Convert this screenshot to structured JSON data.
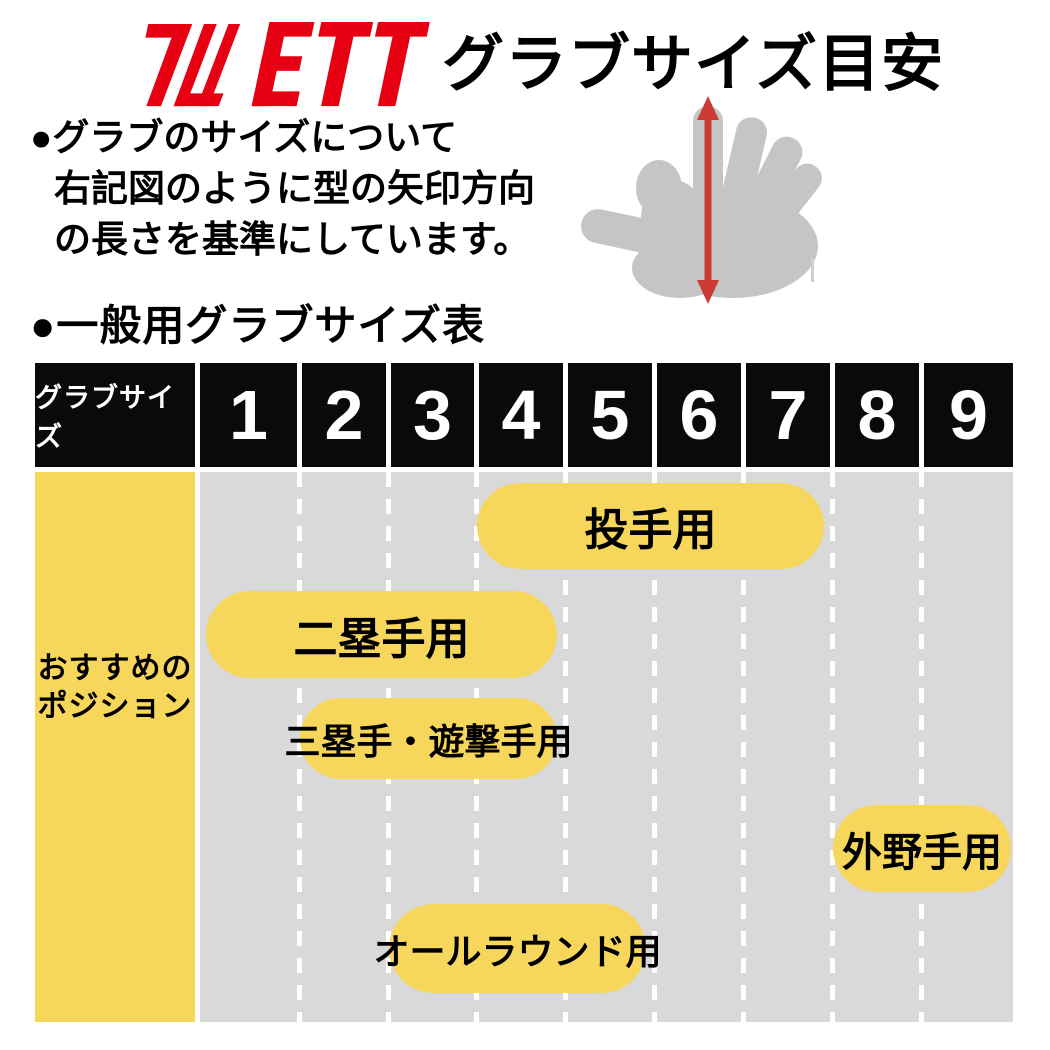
{
  "brand": {
    "name": "ZETT",
    "logo_color": "#E60012"
  },
  "header": {
    "title": "グラブサイズ目安"
  },
  "intro": {
    "line1": "●グラブのサイズについて",
    "line2": "右記図のように型の矢印方向",
    "line3": "の長さを基準にしています。"
  },
  "diagram": {
    "hand_color": "#C5C5C6",
    "arrow_color": "#CC3B33"
  },
  "section": {
    "heading": "●一般用グラブサイズ表"
  },
  "table": {
    "header_label": "グラブサイズ",
    "sizes": [
      "1",
      "2",
      "3",
      "4",
      "5",
      "6",
      "7",
      "8",
      "9"
    ],
    "row_label_line1": "おすすめの",
    "row_label_line2": "ポジション",
    "positions": [
      {
        "label": "投手用",
        "size_start": 4,
        "size_end": 7
      },
      {
        "label": "二塁手用",
        "size_start": 1,
        "size_end": 4
      },
      {
        "label": "三塁手・遊撃手用",
        "size_start": 2,
        "size_end": 4
      },
      {
        "label": "外野手用",
        "size_start": 8,
        "size_end": 9
      },
      {
        "label": "オールラウンド用",
        "size_start": 3,
        "size_end": 5
      }
    ],
    "colors": {
      "header_bg": "#0A0A0A",
      "header_text": "#FFFFFF",
      "body_bg": "#D9D9D9",
      "highlight": "#F7D65C"
    }
  },
  "chart_data": {
    "type": "table",
    "title": "一般用グラブサイズ表",
    "categories": [
      "1",
      "2",
      "3",
      "4",
      "5",
      "6",
      "7",
      "8",
      "9"
    ],
    "series": [
      {
        "name": "投手用",
        "range": [
          4,
          7
        ]
      },
      {
        "name": "二塁手用",
        "range": [
          1,
          4
        ]
      },
      {
        "name": "三塁手・遊撃手用",
        "range": [
          2,
          4
        ]
      },
      {
        "name": "外野手用",
        "range": [
          8,
          9
        ]
      },
      {
        "name": "オールラウンド用",
        "range": [
          3,
          5
        ]
      }
    ],
    "row_header": "おすすめのポジション",
    "column_header": "グラブサイズ"
  }
}
